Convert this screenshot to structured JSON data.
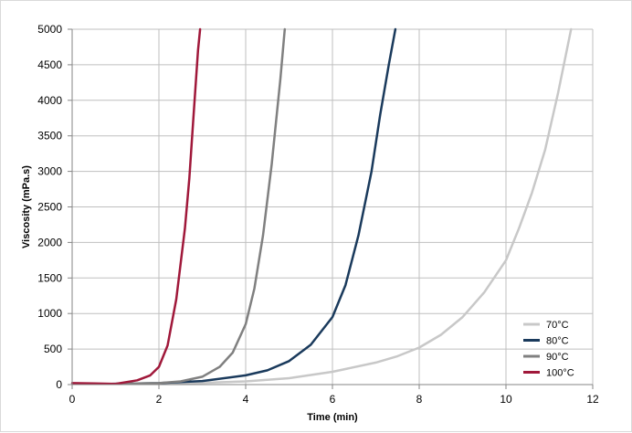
{
  "chart_data": {
    "type": "line",
    "title": "",
    "xlabel": "Time (min)",
    "ylabel": "Viscosity (mPa.s)",
    "xlim": [
      0,
      12
    ],
    "ylim": [
      0,
      5000
    ],
    "xticks": [
      0,
      2,
      4,
      6,
      8,
      10,
      12
    ],
    "yticks": [
      0,
      500,
      1000,
      1500,
      2000,
      2500,
      3000,
      3500,
      4000,
      4500,
      5000
    ],
    "grid": true,
    "legend_position": "bottom-right",
    "series": [
      {
        "name": "70°C",
        "color": "#c8c8c8",
        "x": [
          0.9,
          2,
          3,
          4,
          5,
          6,
          7,
          7.5,
          8,
          8.5,
          9,
          9.5,
          10,
          10.3,
          10.6,
          10.9,
          11.2,
          11.5
        ],
        "y": [
          10,
          15,
          25,
          45,
          90,
          180,
          310,
          400,
          520,
          700,
          950,
          1300,
          1750,
          2200,
          2700,
          3300,
          4100,
          5000
        ]
      },
      {
        "name": "80°C",
        "color": "#1a3a5c",
        "x": [
          0.9,
          2,
          3,
          4,
          4.5,
          5,
          5.5,
          6,
          6.3,
          6.6,
          6.9,
          7.1,
          7.3,
          7.45
        ],
        "y": [
          10,
          20,
          50,
          130,
          200,
          330,
          560,
          950,
          1400,
          2100,
          3000,
          3800,
          4500,
          5000
        ]
      },
      {
        "name": "90°C",
        "color": "#808080",
        "x": [
          0.9,
          2,
          2.5,
          3,
          3.4,
          3.7,
          4,
          4.2,
          4.4,
          4.6,
          4.8,
          4.9
        ],
        "y": [
          10,
          20,
          45,
          110,
          250,
          450,
          850,
          1350,
          2100,
          3100,
          4300,
          5000
        ]
      },
      {
        "name": "100°C",
        "color": "#a0183a",
        "x": [
          0,
          0.5,
          1,
          1.5,
          1.8,
          2,
          2.2,
          2.4,
          2.6,
          2.7,
          2.8,
          2.9,
          2.95
        ],
        "y": [
          20,
          15,
          10,
          60,
          130,
          250,
          550,
          1200,
          2200,
          2900,
          3800,
          4700,
          5000
        ]
      }
    ]
  }
}
